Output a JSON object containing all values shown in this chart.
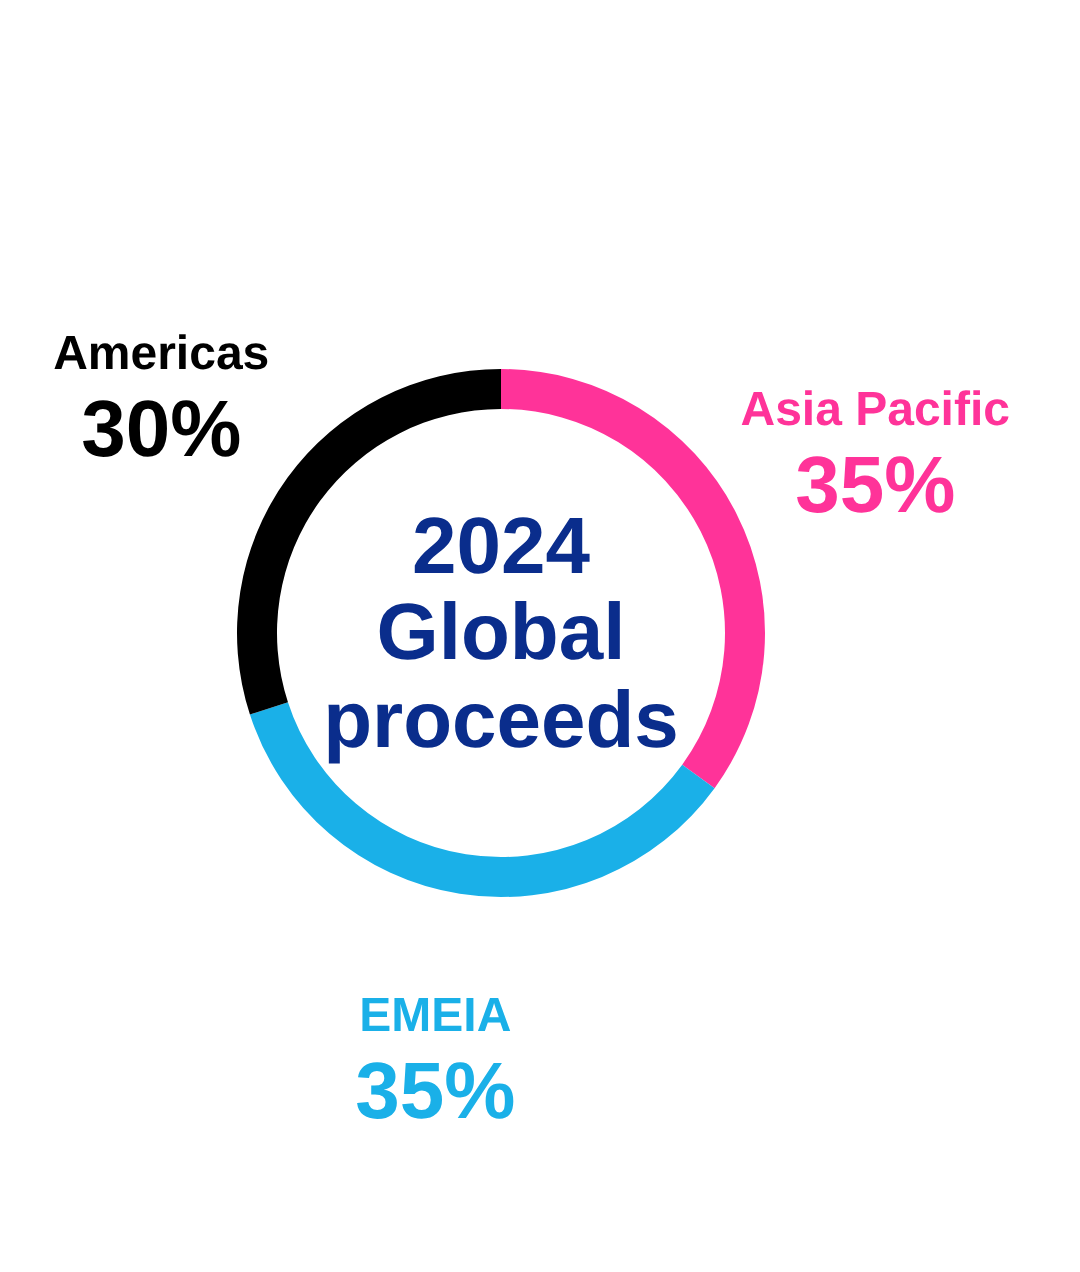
{
  "chart_data": {
    "type": "donut",
    "title": "2024 Global proceeds",
    "categories": [
      "Asia Pacific",
      "EMEIA",
      "Americas"
    ],
    "values": [
      35,
      35,
      30
    ],
    "value_labels": [
      "35%",
      "35%",
      "30%"
    ],
    "colors": [
      "#ff3399",
      "#1ab0e8",
      "#000000"
    ]
  }
}
